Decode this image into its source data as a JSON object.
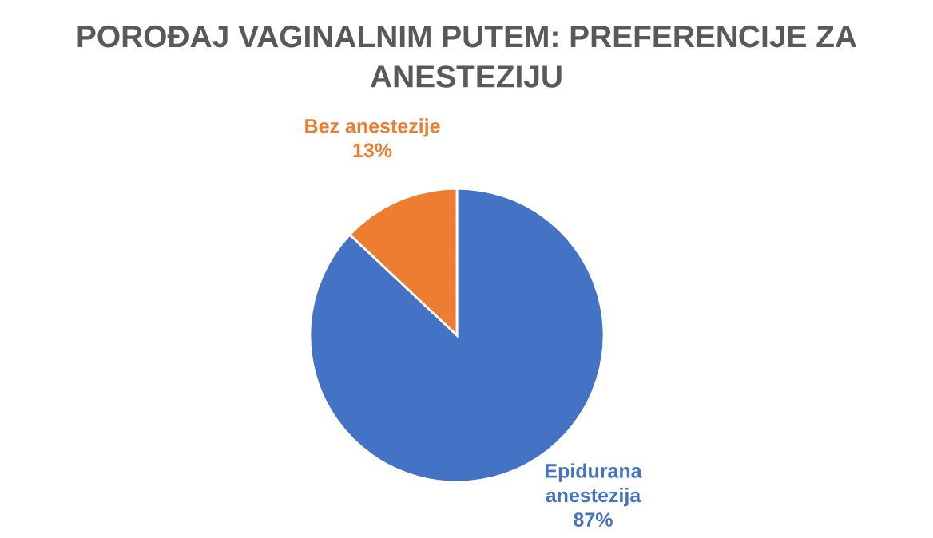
{
  "chart_data": {
    "type": "pie",
    "title": "POROĐAJ VAGINALNIM PUTEM: PREFERENCIJE ZA ANESTEZIJU",
    "categories": [
      "Epidurana\nanestezija",
      "Bez anestezije"
    ],
    "values": [
      87,
      13
    ],
    "value_labels": [
      "87%",
      "13%"
    ],
    "colors": [
      "#4472c4",
      "#ed7d31"
    ]
  }
}
